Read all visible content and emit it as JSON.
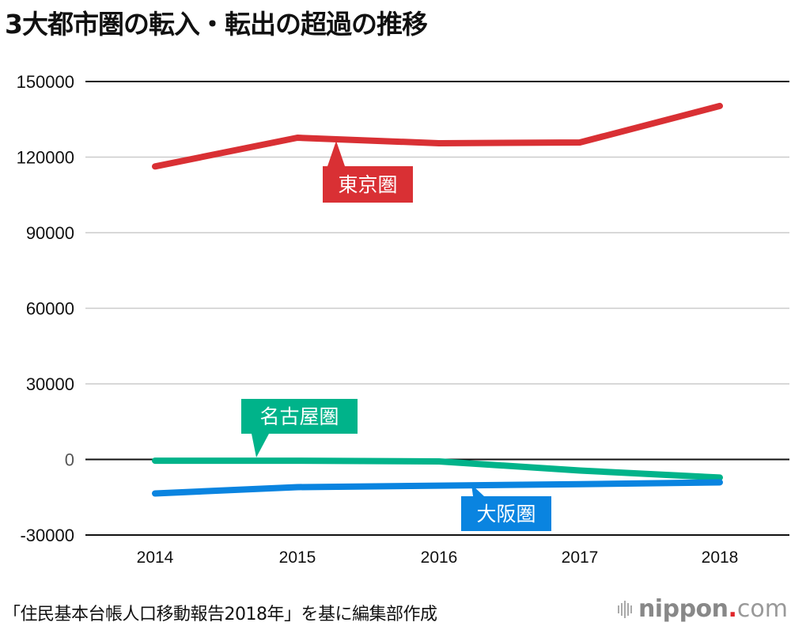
{
  "title": "3大都市圏の転入・転出の超過の推移",
  "source": "「住民基本台帳人口移動報告2018年」を基に編集部作成",
  "logo": {
    "brand": "nippon",
    "dot": ".",
    "tld": "com",
    "icon": "sound-bars-icon"
  },
  "colors": {
    "tokyo": "#d93034",
    "nagoya": "#00b38a",
    "osaka": "#0a84e0",
    "grid": "#cccccc",
    "axis": "#111111"
  },
  "chart_data": {
    "type": "line",
    "title": "3大都市圏の転入・転出の超過の推移",
    "xlabel": "",
    "ylabel": "",
    "categories": [
      "2014",
      "2015",
      "2016",
      "2017",
      "2018"
    ],
    "ylim": [
      -30000,
      150000
    ],
    "yticks": [
      150000,
      120000,
      90000,
      60000,
      30000,
      0,
      -30000
    ],
    "ytick_labels": [
      "150000",
      "120000",
      "90000",
      "60000",
      "30000",
      "0",
      "-30000"
    ],
    "grid": true,
    "legend": "inline-callouts",
    "series": [
      {
        "name": "東京圏",
        "color": "#d93034",
        "values": [
          116300,
          127700,
          125500,
          125800,
          140300
        ]
      },
      {
        "name": "名古屋圏",
        "color": "#00b38a",
        "values": [
          -500,
          -500,
          -800,
          -4400,
          -7200
        ]
      },
      {
        "name": "大阪圏",
        "color": "#0a84e0",
        "values": [
          -13500,
          -11000,
          -10400,
          -9800,
          -9100
        ]
      }
    ]
  }
}
